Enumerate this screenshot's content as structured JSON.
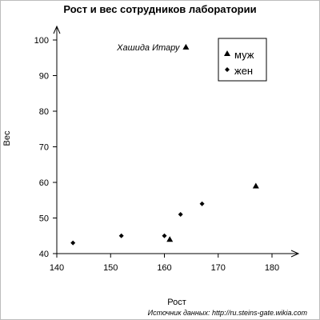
{
  "chart_data": {
    "type": "scatter",
    "title": "Рост и вес сотрудников лаборатории",
    "xlabel": "Рост",
    "ylabel": "Вес",
    "xlim": [
      140,
      185
    ],
    "ylim": [
      40,
      105
    ],
    "xticks": [
      140,
      150,
      160,
      170,
      180
    ],
    "yticks": [
      40,
      50,
      60,
      70,
      80,
      90,
      100
    ],
    "grid": false,
    "legend_position": "top-right",
    "series": [
      {
        "name": "муж",
        "marker": "triangle",
        "points": [
          {
            "x": 161,
            "y": 44
          },
          {
            "x": 164,
            "y": 98
          },
          {
            "x": 177,
            "y": 59
          }
        ]
      },
      {
        "name": "жен",
        "marker": "diamond",
        "points": [
          {
            "x": 143,
            "y": 43
          },
          {
            "x": 152,
            "y": 45
          },
          {
            "x": 160,
            "y": 45
          },
          {
            "x": 163,
            "y": 51
          },
          {
            "x": 167,
            "y": 54
          }
        ]
      }
    ],
    "annotations": [
      {
        "text": "Хашида Итару",
        "x": 164,
        "y": 98
      }
    ],
    "source_note": "Источник данных: http://ru.steins-gate.wikia.com"
  },
  "colors": {
    "marker": "#000000",
    "axis": "#000000",
    "frame": "#bdbdbd"
  }
}
